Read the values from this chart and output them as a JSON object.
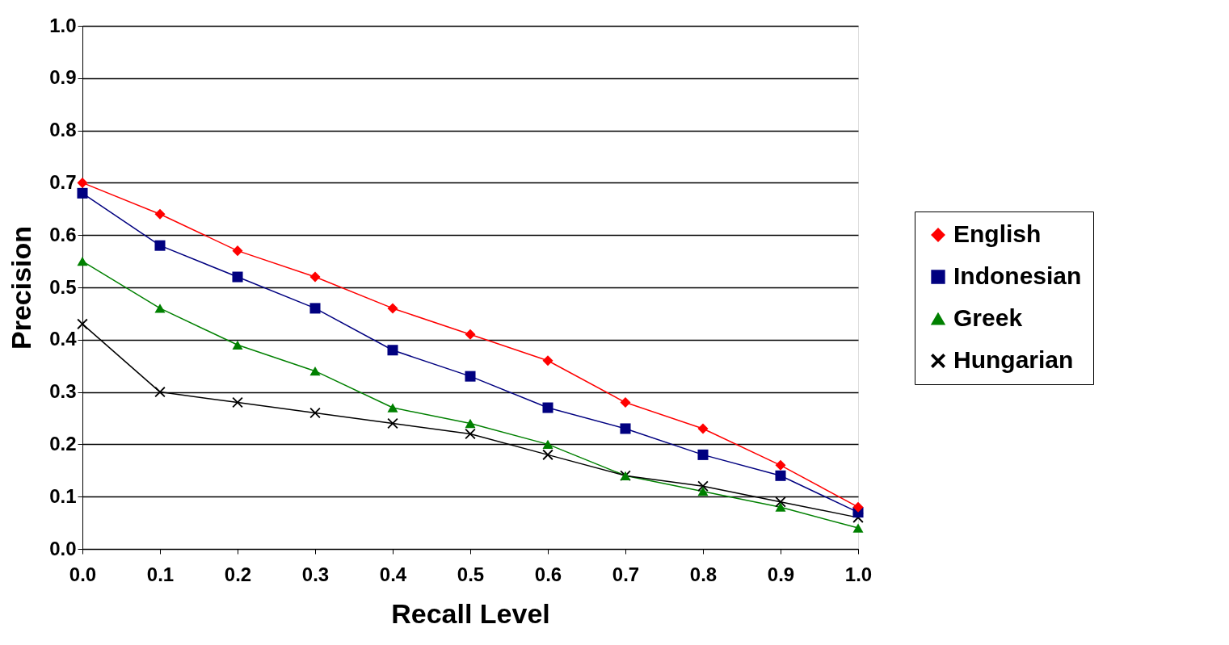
{
  "chart_data": {
    "type": "line",
    "xlabel": "Recall Level",
    "ylabel": "Precision",
    "x": [
      0,
      0.1,
      0.2,
      0.3,
      0.4,
      0.5,
      0.6,
      0.7,
      0.8,
      0.9,
      1.0
    ],
    "series": [
      {
        "name": "English",
        "color": "#ff0000",
        "marker": "diamond",
        "values": [
          0.7,
          0.64,
          0.57,
          0.52,
          0.46,
          0.41,
          0.36,
          0.28,
          0.23,
          0.16,
          0.08
        ]
      },
      {
        "name": "Indonesian",
        "color": "#000080",
        "marker": "square",
        "values": [
          0.68,
          0.58,
          0.52,
          0.46,
          0.38,
          0.33,
          0.27,
          0.23,
          0.18,
          0.14,
          0.07
        ]
      },
      {
        "name": "Greek",
        "color": "#008000",
        "marker": "triangle",
        "values": [
          0.55,
          0.46,
          0.39,
          0.34,
          0.27,
          0.24,
          0.2,
          0.14,
          0.11,
          0.08,
          0.04
        ]
      },
      {
        "name": "Hungarian",
        "color": "#000000",
        "marker": "cross",
        "values": [
          0.43,
          0.3,
          0.28,
          0.26,
          0.24,
          0.22,
          0.18,
          0.14,
          0.12,
          0.09,
          0.06
        ]
      }
    ],
    "xlim": [
      0,
      1.0
    ],
    "ylim": [
      0,
      1.0
    ],
    "xticks": [
      {
        "value": 0,
        "label": "0.0"
      },
      0.1,
      0.2,
      0.3,
      0.4,
      0.5,
      0.6,
      0.7,
      0.8,
      0.9,
      {
        "value": 1.0,
        "label": "1.0"
      }
    ],
    "yticks": [
      {
        "value": 0,
        "label": "0.0"
      },
      0.1,
      0.2,
      0.3,
      0.4,
      0.5,
      0.6,
      0.7,
      0.8,
      0.9,
      {
        "value": 1.0,
        "label": "1.0"
      }
    ],
    "grid": "y",
    "legend": "right",
    "line_style": "solid"
  }
}
